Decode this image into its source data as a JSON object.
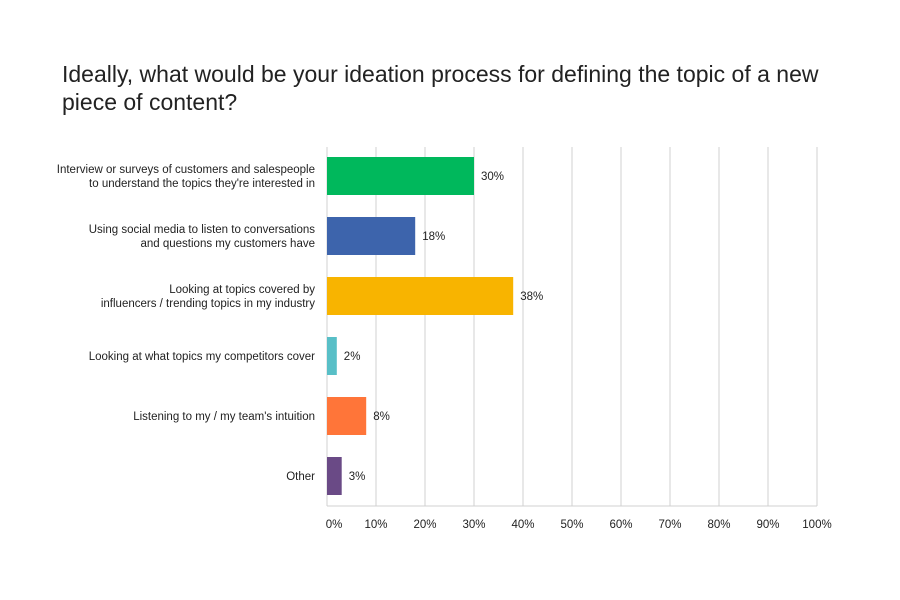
{
  "chart_data": {
    "type": "bar",
    "orientation": "horizontal",
    "title": "Ideally, what would be your ideation process for defining the topic of a new piece of content?",
    "categories": [
      [
        "Interview or surveys of customers and salespeople",
        "to understand the topics they're interested in"
      ],
      [
        "Using social media to listen to conversations",
        "and questions my customers have"
      ],
      [
        "Looking at topics covered by",
        "influencers / trending topics in my industry"
      ],
      [
        "Looking at what topics my competitors cover"
      ],
      [
        "Listening to my / my team's intuition"
      ],
      [
        "Other"
      ]
    ],
    "values": [
      30,
      18,
      38,
      2,
      8,
      3
    ],
    "value_labels": [
      "30%",
      "18%",
      "38%",
      "2%",
      "8%",
      "3%"
    ],
    "colors": [
      "#00b85c",
      "#3d64ac",
      "#f8b400",
      "#58bfc7",
      "#ff7539",
      "#6a4a86"
    ],
    "xlim": [
      0,
      100
    ],
    "x_ticks": [
      0,
      10,
      20,
      30,
      40,
      50,
      60,
      70,
      80,
      90,
      100
    ],
    "x_tick_labels": [
      "0%",
      "10%",
      "20%",
      "30%",
      "40%",
      "50%",
      "60%",
      "70%",
      "80%",
      "90%",
      "100%"
    ],
    "grid": true,
    "legend": "none",
    "gridline_color": "#d0d0d0"
  }
}
